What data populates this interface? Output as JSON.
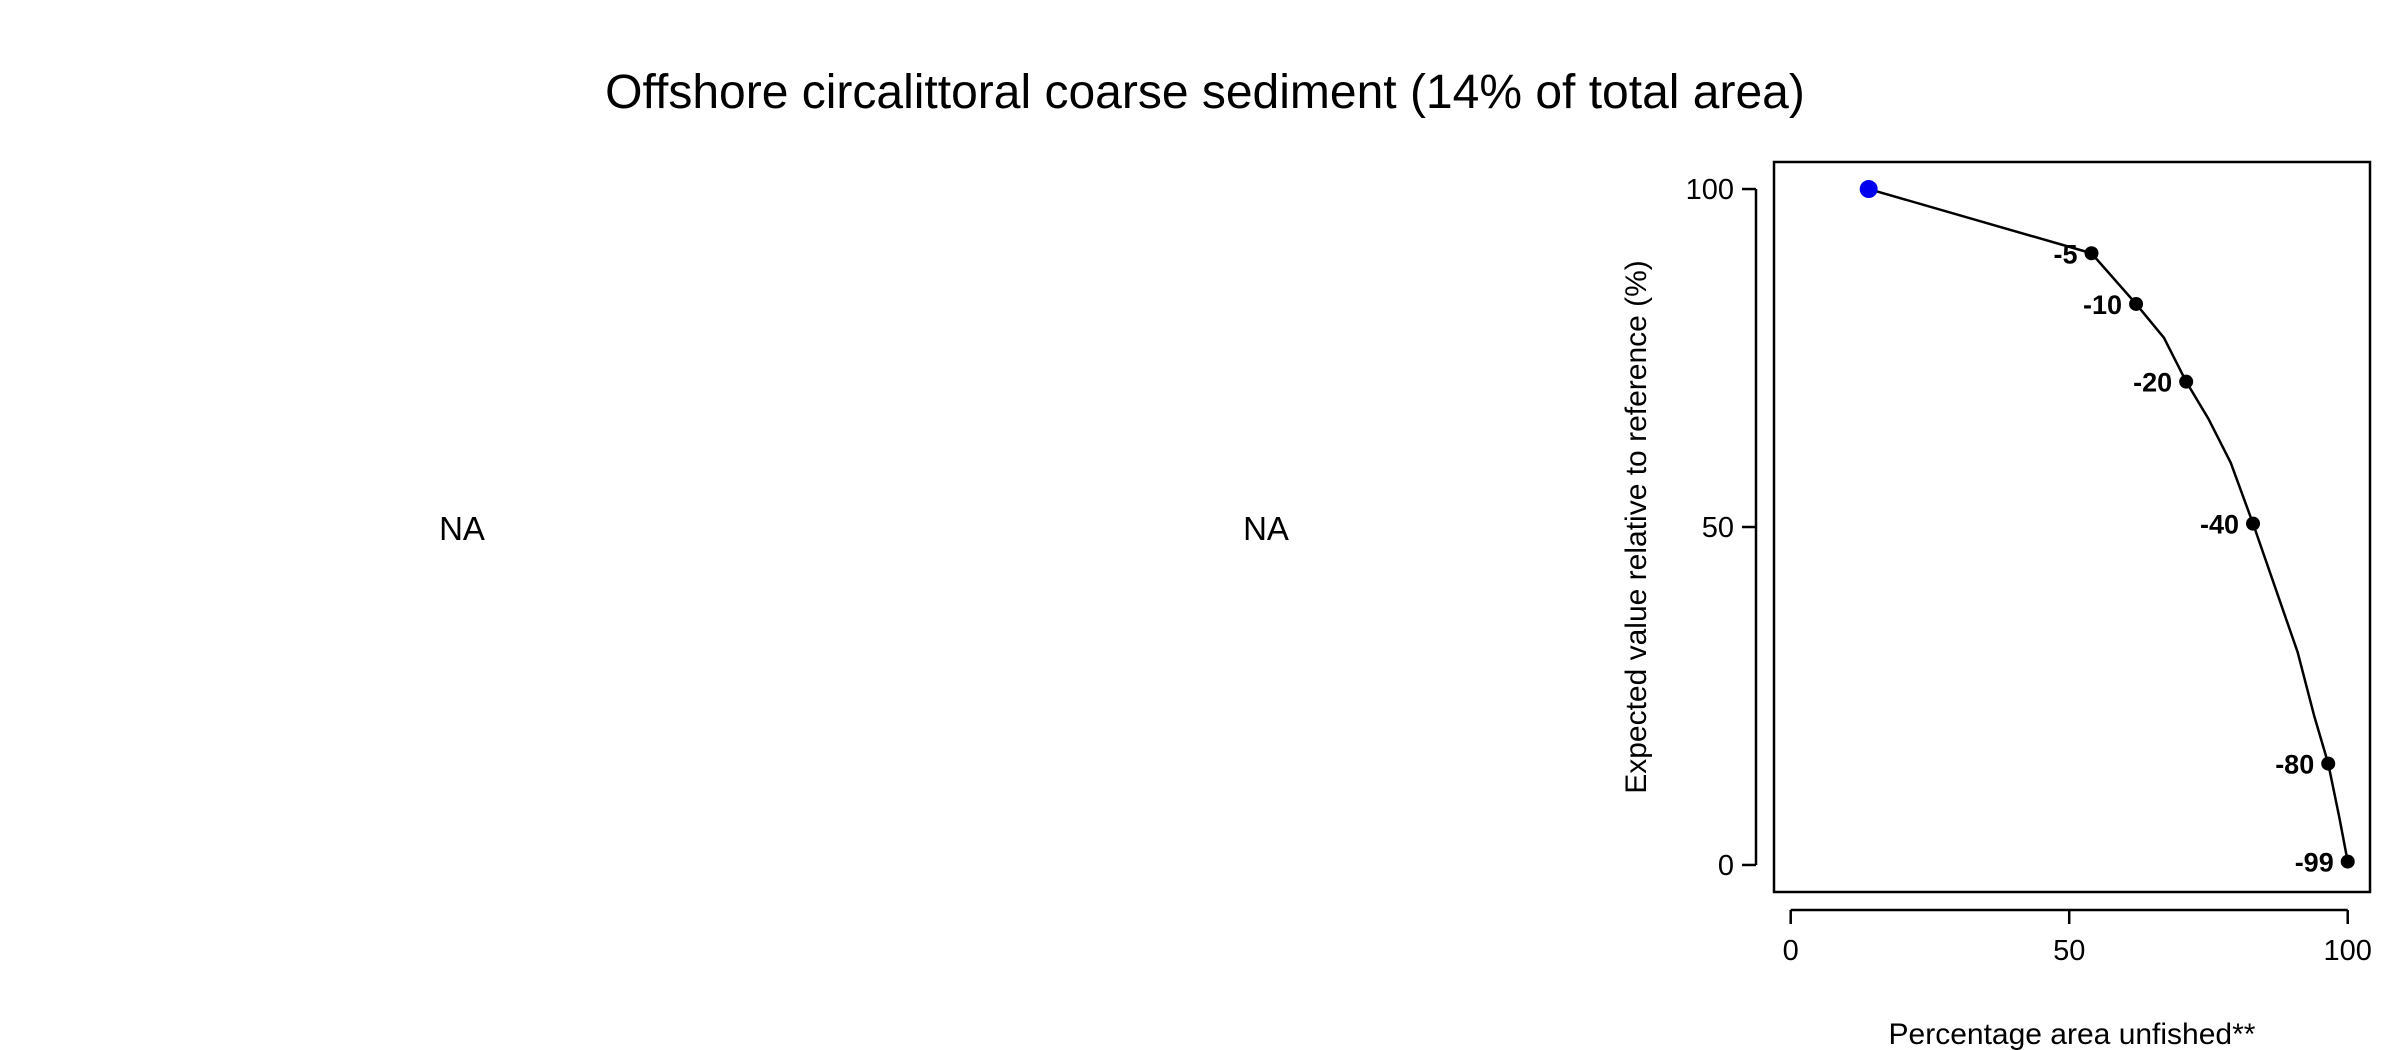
{
  "title": "Offshore circalittoral coarse sediment (14% of total area)",
  "panels": [
    {
      "text": "NA"
    },
    {
      "text": "NA"
    }
  ],
  "chart_data": {
    "type": "line",
    "title": "",
    "xlabel": "Percentage area unfished**",
    "ylabel": "Expected value relative to reference (%)",
    "xlim": [
      -3,
      104
    ],
    "ylim": [
      -4,
      104
    ],
    "xticks": [
      "0",
      "50",
      "100"
    ],
    "yticks": [
      "0",
      "50",
      "100"
    ],
    "grid": false,
    "line_color": "#000000",
    "curve": {
      "x": [
        14,
        54,
        62,
        67,
        71,
        75,
        79,
        83,
        87,
        91,
        94,
        96.5,
        98.5,
        100
      ],
      "y": [
        100,
        90.5,
        83,
        78,
        71.5,
        66,
        59.5,
        50.5,
        41,
        31.5,
        22,
        15,
        7,
        0.5
      ]
    },
    "current": {
      "x": 14,
      "y": 100,
      "color": "#0000ee"
    },
    "points": [
      {
        "label": "-5",
        "x": 54,
        "y": 90.5
      },
      {
        "label": "-10",
        "x": 62,
        "y": 83
      },
      {
        "label": "-20",
        "x": 71,
        "y": 71.5
      },
      {
        "label": "-40",
        "x": 83,
        "y": 50.5
      },
      {
        "label": "-80",
        "x": 96.5,
        "y": 15
      },
      {
        "label": "-99",
        "x": 100,
        "y": 0.5
      }
    ]
  }
}
